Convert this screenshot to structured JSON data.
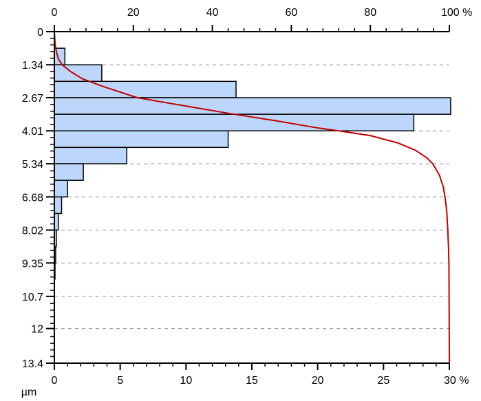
{
  "chart_data": {
    "type": "bar",
    "orientation": "horizontal",
    "y_axis": {
      "label": "µm",
      "ticks": [
        "0",
        "1.34",
        "2.67",
        "4.01",
        "5.34",
        "6.68",
        "8.02",
        "9.35",
        "10.7",
        "12",
        "13.4"
      ],
      "range": [
        0,
        13.4
      ],
      "inverted": true
    },
    "bottom_axis": {
      "label": "%",
      "ticks": [
        "0",
        "5",
        "10",
        "15",
        "20",
        "25",
        "30 %"
      ],
      "range": [
        0,
        30
      ]
    },
    "top_axis": {
      "label": "%",
      "ticks": [
        "0",
        "20",
        "40",
        "60",
        "80",
        "100 %"
      ],
      "range": [
        0,
        100
      ]
    },
    "grid": "horizontal dashed",
    "series": [
      {
        "kind": "histogram",
        "axis": "bottom",
        "bin_width": 0.67,
        "bins": [
          {
            "from": 0.67,
            "to": 1.34,
            "value": 0.8
          },
          {
            "from": 1.34,
            "to": 2.01,
            "value": 3.6
          },
          {
            "from": 2.01,
            "to": 2.67,
            "value": 13.8
          },
          {
            "from": 2.67,
            "to": 3.34,
            "value": 30.1
          },
          {
            "from": 3.34,
            "to": 4.01,
            "value": 27.3
          },
          {
            "from": 4.01,
            "to": 4.68,
            "value": 13.2
          },
          {
            "from": 4.68,
            "to": 5.34,
            "value": 5.5
          },
          {
            "from": 5.34,
            "to": 6.01,
            "value": 2.2
          },
          {
            "from": 6.01,
            "to": 6.68,
            "value": 1.0
          },
          {
            "from": 6.68,
            "to": 7.35,
            "value": 0.55
          },
          {
            "from": 7.35,
            "to": 8.02,
            "value": 0.3
          },
          {
            "from": 8.02,
            "to": 8.69,
            "value": 0.15
          },
          {
            "from": 8.69,
            "to": 9.35,
            "value": 0.1
          },
          {
            "from": 9.35,
            "to": 10.0,
            "value": 0.05
          }
        ]
      },
      {
        "kind": "cumulative",
        "axis": "top",
        "points": [
          {
            "y": 0.0,
            "pct": 0
          },
          {
            "y": 0.5,
            "pct": 0.2
          },
          {
            "y": 0.8,
            "pct": 0.5
          },
          {
            "y": 1.1,
            "pct": 1
          },
          {
            "y": 1.34,
            "pct": 2
          },
          {
            "y": 1.6,
            "pct": 4
          },
          {
            "y": 1.9,
            "pct": 7
          },
          {
            "y": 2.2,
            "pct": 12
          },
          {
            "y": 2.67,
            "pct": 21
          },
          {
            "y": 3.0,
            "pct": 33
          },
          {
            "y": 3.3,
            "pct": 44
          },
          {
            "y": 3.6,
            "pct": 56
          },
          {
            "y": 3.9,
            "pct": 67
          },
          {
            "y": 4.01,
            "pct": 72
          },
          {
            "y": 4.2,
            "pct": 80
          },
          {
            "y": 4.5,
            "pct": 87
          },
          {
            "y": 4.8,
            "pct": 91.5
          },
          {
            "y": 5.1,
            "pct": 94.3
          },
          {
            "y": 5.34,
            "pct": 95.8
          },
          {
            "y": 5.8,
            "pct": 97.5
          },
          {
            "y": 6.3,
            "pct": 98.5
          },
          {
            "y": 6.8,
            "pct": 99.0
          },
          {
            "y": 7.3,
            "pct": 99.35
          },
          {
            "y": 8.0,
            "pct": 99.6
          },
          {
            "y": 8.8,
            "pct": 99.8
          },
          {
            "y": 9.35,
            "pct": 99.9
          },
          {
            "y": 11.0,
            "pct": 99.95
          },
          {
            "y": 13.4,
            "pct": 100
          }
        ]
      }
    ],
    "colors": {
      "bar_fill": "#bdd7fc",
      "bar_stroke": "#000000",
      "curve": "#c00000",
      "grid": "#8c8c8c",
      "axis": "#000000"
    }
  }
}
